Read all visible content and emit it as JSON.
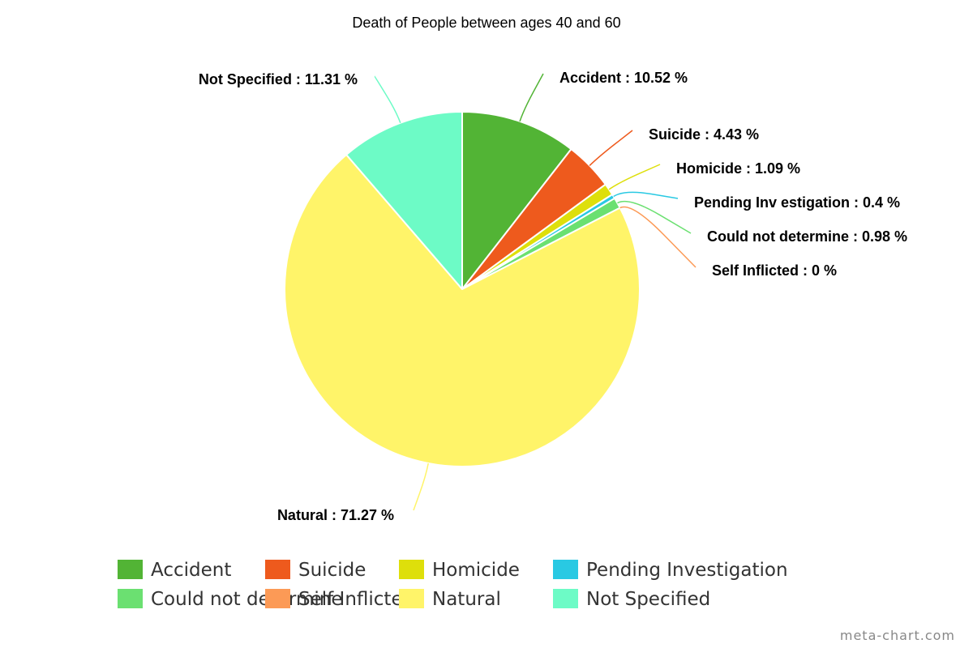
{
  "chart_data": {
    "type": "pie",
    "title": "Death of People between ages 40 and 60",
    "slices": [
      {
        "name": "Accident",
        "value": 10.52,
        "label": "Accident : 10.52 %",
        "color": "#52b435"
      },
      {
        "name": "Suicide",
        "value": 4.43,
        "label": "Suicide : 4.43 %",
        "color": "#ee5a1d"
      },
      {
        "name": "Homicide",
        "value": 1.09,
        "label": "Homicide : 1.09 %",
        "color": "#dedf0b"
      },
      {
        "name": "Pending Investigation",
        "value": 0.4,
        "label": "Pending Inv estigation : 0.4 %",
        "color": "#29c9e3"
      },
      {
        "name": "Could not determine",
        "value": 0.98,
        "label": "Could not determine : 0.98 %",
        "color": "#6be071"
      },
      {
        "name": "Self Inflicted",
        "value": 0,
        "label": "Self Inflicted : 0 %",
        "color": "#fc9a56"
      },
      {
        "name": "Natural",
        "value": 71.27,
        "label": "Natural : 71.27 %",
        "color": "#fff469"
      },
      {
        "name": "Not Specified",
        "value": 11.31,
        "label": "Not Specified : 11.31 %",
        "color": "#6dfbc6"
      }
    ],
    "legend_position": "bottom"
  },
  "credit": "meta-chart.com"
}
